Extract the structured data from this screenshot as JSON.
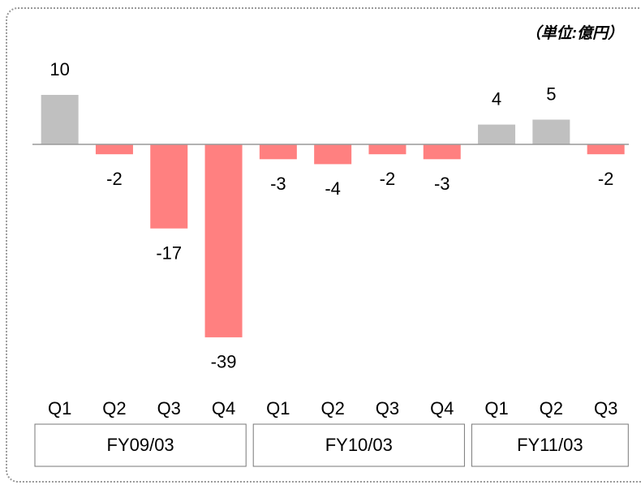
{
  "chart_data": {
    "type": "bar",
    "unit_label": "（単位:億円）",
    "groups": [
      {
        "name": "FY09/03",
        "categories": [
          "Q1",
          "Q2",
          "Q3",
          "Q4"
        ]
      },
      {
        "name": "FY10/03",
        "categories": [
          "Q1",
          "Q2",
          "Q3",
          "Q4"
        ]
      },
      {
        "name": "FY11/03",
        "categories": [
          "Q1",
          "Q2",
          "Q3"
        ]
      }
    ],
    "values": [
      10,
      -2,
      -17,
      -39,
      -3,
      -4,
      -2,
      -3,
      4,
      5,
      -2
    ],
    "colors": {
      "positive": "#c0c0c0",
      "negative": "#ff8080"
    }
  }
}
